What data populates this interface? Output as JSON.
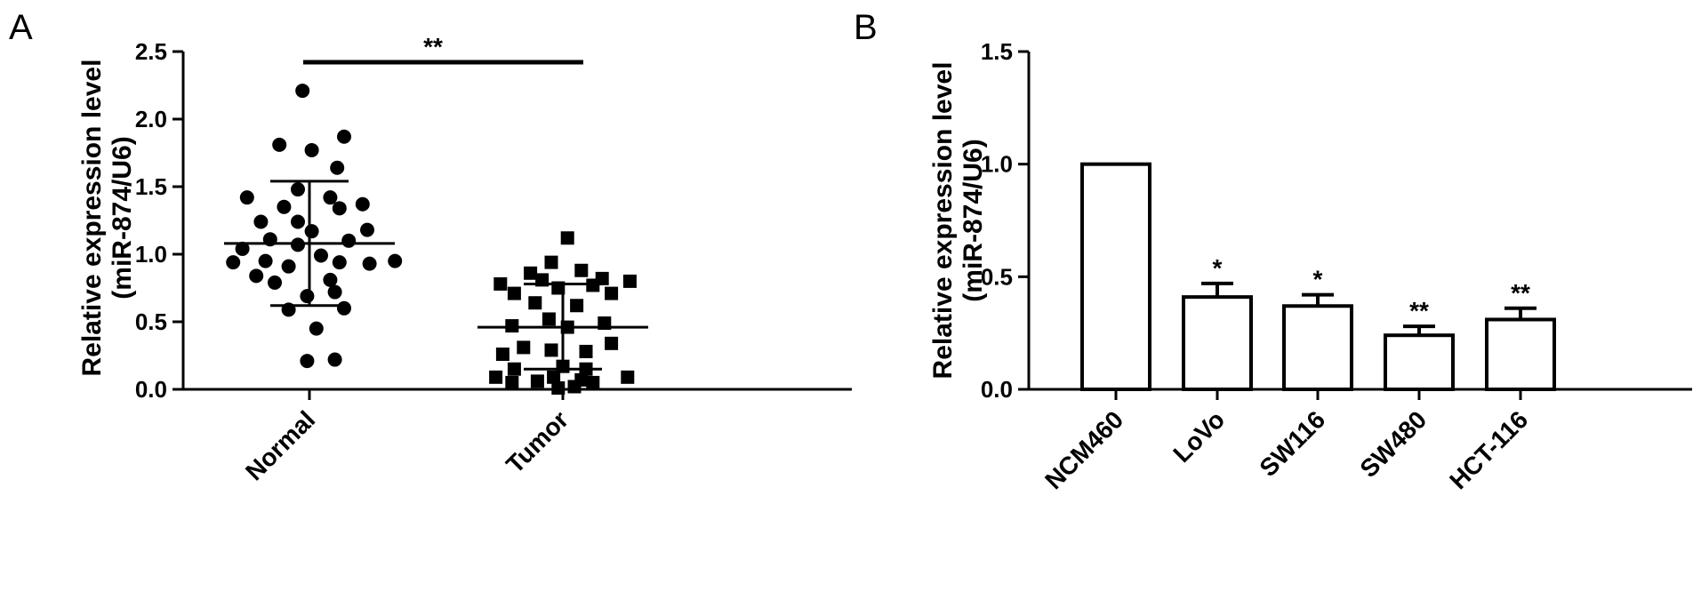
{
  "chart_data": [
    {
      "panel": "A",
      "type": "scatter",
      "categories": [
        "Normal",
        "Tumor"
      ],
      "ylabel_line1": "Relative expression level",
      "ylabel_line2": "(miR-874/U6)",
      "ylim": [
        0,
        2.5
      ],
      "yticks": [
        "0.0",
        "0.5",
        "1.0",
        "1.5",
        "2.0",
        "2.5"
      ],
      "grid": false,
      "significance": "**",
      "series": [
        {
          "category": "Normal",
          "marker": "circle",
          "summary": {
            "mean": 1.08,
            "upper": 1.54,
            "lower": 0.62
          },
          "points": [
            [
              -0.03,
              2.21
            ],
            [
              -0.13,
              1.81
            ],
            [
              0.01,
              1.77
            ],
            [
              0.15,
              1.87
            ],
            [
              0.12,
              1.64
            ],
            [
              -0.05,
              1.48
            ],
            [
              0.09,
              1.42
            ],
            [
              -0.27,
              1.42
            ],
            [
              0.23,
              1.37
            ],
            [
              -0.11,
              1.35
            ],
            [
              0.13,
              1.34
            ],
            [
              -0.05,
              1.24
            ],
            [
              -0.21,
              1.24
            ],
            [
              0.25,
              1.18
            ],
            [
              0.01,
              1.17
            ],
            [
              -0.17,
              1.11
            ],
            [
              0.17,
              1.1
            ],
            [
              -0.05,
              1.07
            ],
            [
              -0.29,
              1.04
            ],
            [
              0.05,
              0.99
            ],
            [
              -0.33,
              0.94
            ],
            [
              -0.19,
              0.95
            ],
            [
              0.37,
              0.95
            ],
            [
              0.13,
              0.94
            ],
            [
              0.26,
              0.93
            ],
            [
              -0.09,
              0.91
            ],
            [
              -0.23,
              0.84
            ],
            [
              0.09,
              0.81
            ],
            [
              -0.15,
              0.79
            ],
            [
              0.11,
              0.72
            ],
            [
              -0.01,
              0.69
            ],
            [
              -0.09,
              0.59
            ],
            [
              0.15,
              0.6
            ],
            [
              0.03,
              0.45
            ],
            [
              -0.01,
              0.21
            ],
            [
              0.11,
              0.22
            ]
          ]
        },
        {
          "category": "Tumor",
          "marker": "square",
          "summary": {
            "mean": 0.46,
            "upper": 0.78,
            "lower": 0.15
          },
          "points": [
            [
              0.02,
              1.12
            ],
            [
              -0.05,
              0.94
            ],
            [
              0.08,
              0.88
            ],
            [
              -0.14,
              0.86
            ],
            [
              0.17,
              0.82
            ],
            [
              -0.09,
              0.81
            ],
            [
              0.29,
              0.8
            ],
            [
              -0.27,
              0.78
            ],
            [
              0.13,
              0.77
            ],
            [
              -0.02,
              0.75
            ],
            [
              -0.21,
              0.71
            ],
            [
              0.21,
              0.71
            ],
            [
              -0.12,
              0.64
            ],
            [
              0.06,
              0.62
            ],
            [
              -0.06,
              0.52
            ],
            [
              0.18,
              0.49
            ],
            [
              -0.22,
              0.47
            ],
            [
              0.02,
              0.46
            ],
            [
              0.21,
              0.34
            ],
            [
              -0.17,
              0.31
            ],
            [
              -0.05,
              0.29
            ],
            [
              0.1,
              0.28
            ],
            [
              -0.26,
              0.26
            ],
            [
              0.0,
              0.17
            ],
            [
              -0.21,
              0.15
            ],
            [
              0.1,
              0.15
            ],
            [
              -0.29,
              0.09
            ],
            [
              -0.04,
              0.09
            ],
            [
              0.08,
              0.07
            ],
            [
              0.28,
              0.09
            ],
            [
              -0.11,
              0.06
            ],
            [
              -0.22,
              0.05
            ],
            [
              0.13,
              0.05
            ],
            [
              0.05,
              0.02
            ],
            [
              -0.02,
              0.01
            ]
          ]
        }
      ]
    },
    {
      "panel": "B",
      "type": "bar",
      "categories": [
        "NCM460",
        "LoVo",
        "SW116",
        "SW480",
        "HCT-116"
      ],
      "values": [
        1.0,
        0.41,
        0.37,
        0.24,
        0.31
      ],
      "errors": [
        0.0,
        0.06,
        0.05,
        0.04,
        0.05
      ],
      "significance": [
        "",
        "*",
        "*",
        "**",
        "**"
      ],
      "ylabel_line1": "Relative expression level",
      "ylabel_line2": "(miR-874/U6)",
      "ylim": [
        0,
        1.5
      ],
      "yticks": [
        "0.0",
        "0.5",
        "1.0",
        "1.5"
      ],
      "grid": false
    }
  ]
}
